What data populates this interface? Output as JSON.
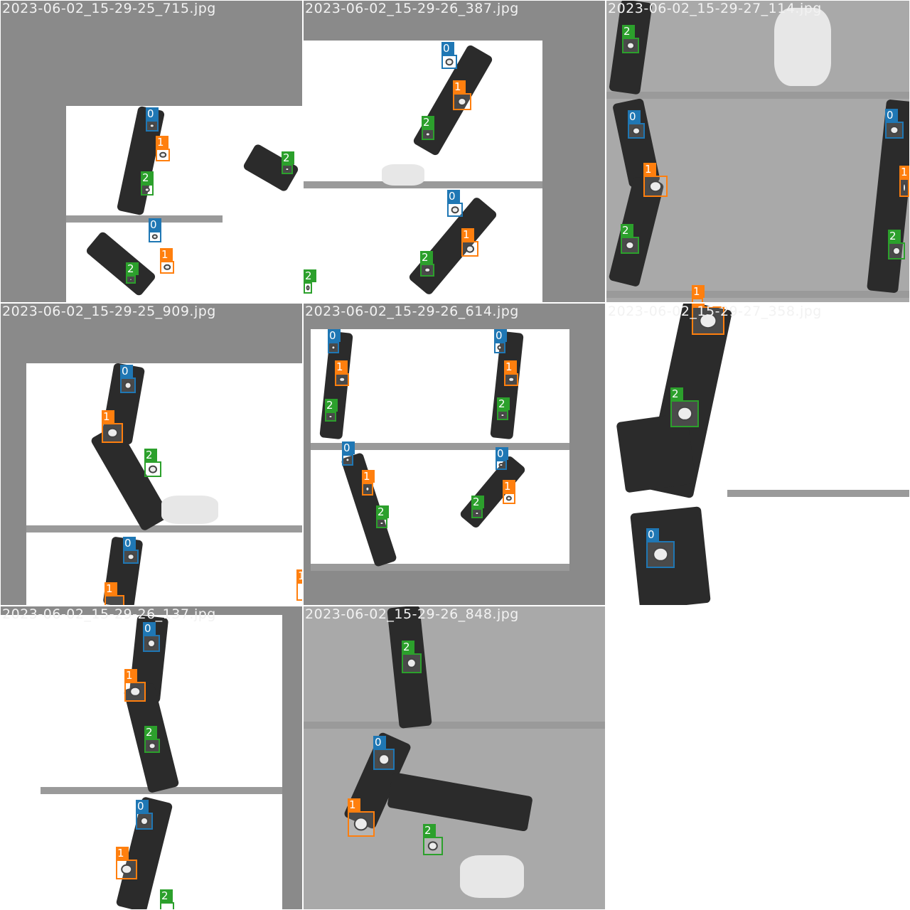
{
  "tiles": [
    {
      "filename": "2023-06-02_15-29-25_715.jpg"
    },
    {
      "filename": "2023-06-02_15-29-26_387.jpg"
    },
    {
      "filename": "2023-06-02_15-29-27_114.jpg"
    },
    {
      "filename": "2023-06-02_15-29-25_909.jpg"
    },
    {
      "filename": "2023-06-02_15-29-26_614.jpg"
    },
    {
      "filename": "2023-06-02_15-29-27_358.jpg"
    },
    {
      "filename": "2023-06-02_15-29-26_137.jpg"
    },
    {
      "filename": "2023-06-02_15-29-26_848.jpg"
    }
  ],
  "class_labels": {
    "c0": "0",
    "c1": "1",
    "c2": "2"
  },
  "colors": {
    "class0": "#1f77b4",
    "class1": "#ff7f0e",
    "class2": "#2ca02c",
    "mosaic_gray": "#8a8a8a"
  }
}
